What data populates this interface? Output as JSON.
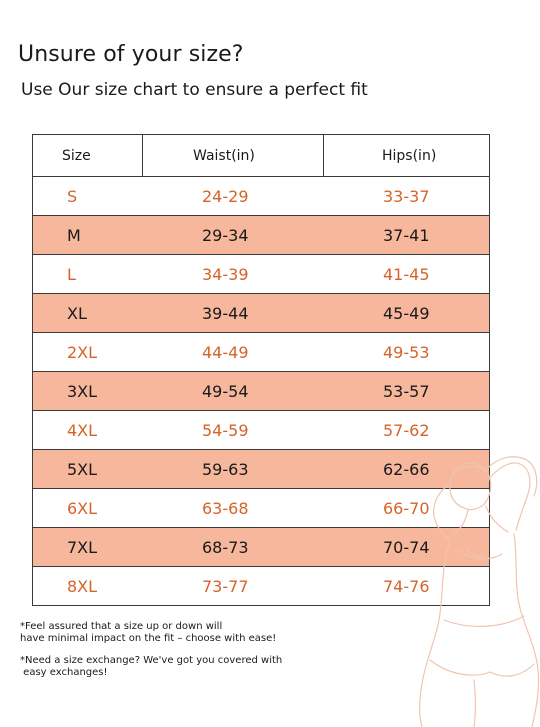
{
  "heading": {
    "title": "Unsure of your size?",
    "subtitle": "Use Our size chart to ensure a perfect fit"
  },
  "size_chart": {
    "columns": [
      "Size",
      "Waist(in)",
      "Hips(in)"
    ],
    "rows": [
      {
        "size": "S",
        "waist": "24-29",
        "hips": "33-37"
      },
      {
        "size": "M",
        "waist": "29-34",
        "hips": "37-41"
      },
      {
        "size": "L",
        "waist": "34-39",
        "hips": "41-45"
      },
      {
        "size": "XL",
        "waist": "39-44",
        "hips": "45-49"
      },
      {
        "size": "2XL",
        "waist": "44-49",
        "hips": "49-53"
      },
      {
        "size": "3XL",
        "waist": "49-54",
        "hips": "53-57"
      },
      {
        "size": "4XL",
        "waist": "54-59",
        "hips": "57-62"
      },
      {
        "size": "5XL",
        "waist": "59-63",
        "hips": "62-66"
      },
      {
        "size": "6XL",
        "waist": "63-68",
        "hips": "66-70"
      },
      {
        "size": "7XL",
        "waist": "68-73",
        "hips": "70-74"
      },
      {
        "size": "8XL",
        "waist": "73-77",
        "hips": "74-76"
      }
    ]
  },
  "notes": {
    "fit_line1": "*Feel assured that a size up or down will",
    "fit_line2": "have minimal impact on the fit – choose with ease!",
    "exchange_line1": "*Need a size exchange? We've got you covered with",
    "exchange_line2": " easy exchanges!"
  },
  "colors": {
    "highlight_row": "#f6b79c",
    "accent_text": "#d4642a",
    "illustration_stroke": "#f2c4ae"
  },
  "icons": {
    "illustration": "body-outline-illustration"
  }
}
